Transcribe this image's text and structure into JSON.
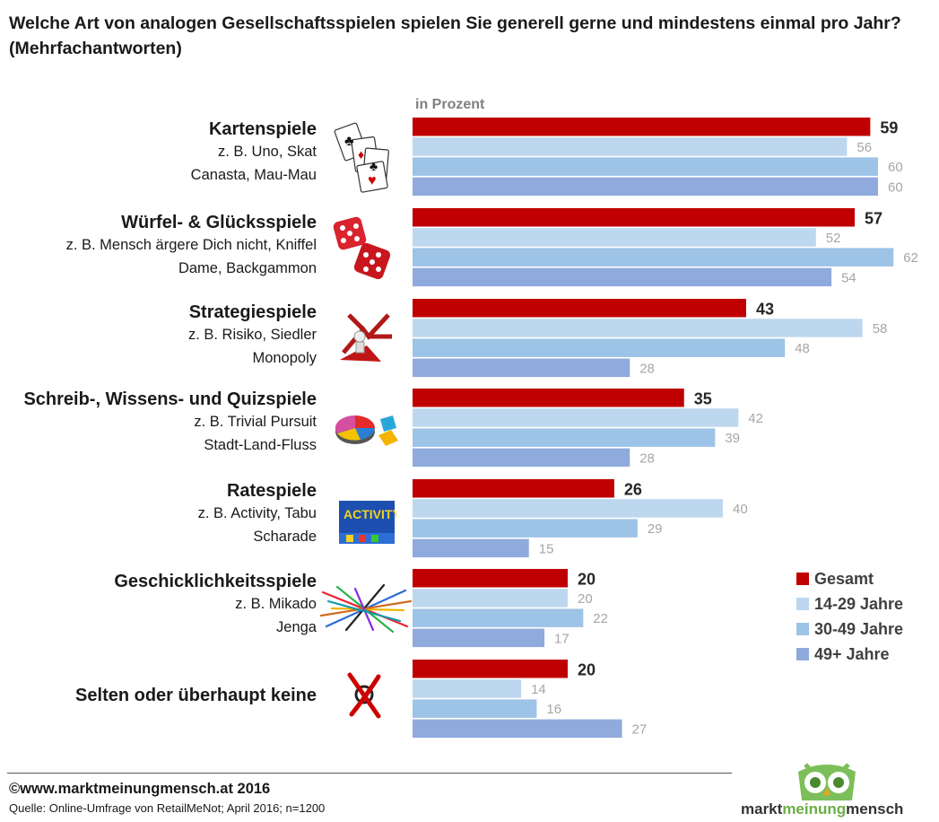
{
  "title": "Welche Art von analogen Gesellschaftsspielen spielen Sie generell gerne und mindestens einmal pro Jahr? (Mehrfachantworten)",
  "unit_label": "in Prozent",
  "colors": {
    "gesamt": "#c00000",
    "a14_29": "#bdd7ee",
    "a30_49": "#9dc3e6",
    "a49plus": "#8faadc"
  },
  "categories": [
    {
      "name": "Kartenspiele",
      "examples": [
        "z. B. Uno, Skat",
        "Canasta, Mau-Mau"
      ],
      "icon": "playing-cards-icon"
    },
    {
      "name": "Würfel- & Glücksspiele",
      "examples": [
        "z. B. Mensch ärgere Dich nicht, Kniffel",
        "Dame, Backgammon"
      ],
      "icon": "dice-icon"
    },
    {
      "name": "Strategiespiele",
      "examples": [
        "z. B. Risiko, Siedler",
        "Monopoly"
      ],
      "icon": "strategy-arrows-icon"
    },
    {
      "name": "Schreib-, Wissens- und Quizspiele",
      "examples": [
        "z. B. Trivial Pursuit",
        "Stadt-Land-Fluss"
      ],
      "icon": "quiz-pie-icon"
    },
    {
      "name": "Ratespiele",
      "examples": [
        "z. B. Activity, Tabu",
        "Scharade"
      ],
      "icon": "activity-box-icon"
    },
    {
      "name": "Geschicklichkeitsspiele",
      "examples": [
        "z. B. Mikado",
        "Jenga"
      ],
      "icon": "mikado-sticks-icon"
    },
    {
      "name": "Selten oder überhaupt keine",
      "examples": [],
      "icon": "crossed-out-icon"
    }
  ],
  "chart_data": {
    "type": "bar",
    "orientation": "horizontal",
    "title": "Welche Art von analogen Gesellschaftsspielen spielen Sie generell gerne und mindestens einmal pro Jahr? (Mehrfachantworten)",
    "unit": "in Prozent",
    "categories": [
      "Kartenspiele",
      "Würfel- & Glücksspiele",
      "Strategiespiele",
      "Schreib-, Wissens- und Quizspiele",
      "Ratespiele",
      "Geschicklichkeitsspiele",
      "Selten oder überhaupt keine"
    ],
    "series": [
      {
        "name": "Gesamt",
        "values": [
          59,
          57,
          43,
          35,
          26,
          20,
          20
        ]
      },
      {
        "name": "14-29 Jahre",
        "values": [
          56,
          52,
          58,
          42,
          40,
          20,
          14
        ]
      },
      {
        "name": "30-49 Jahre",
        "values": [
          60,
          62,
          48,
          39,
          29,
          22,
          16
        ]
      },
      {
        "name": "49+ Jahre",
        "values": [
          60,
          54,
          28,
          28,
          15,
          17,
          27
        ]
      }
    ],
    "xlim": [
      0,
      100
    ],
    "legend_position": "bottom-right",
    "grid": false
  },
  "legend": [
    "Gesamt",
    "14-29 Jahre",
    "30-49 Jahre",
    "49+ Jahre"
  ],
  "footer": {
    "copyright": "©www.marktmeinungmensch.at 2016",
    "source": "Quelle: Online-Umfrage von RetailMeNot; April 2016; n=1200"
  },
  "logo": {
    "part1": "markt",
    "part2": "meinung",
    "part3": "mensch",
    "icon": "owl-logo-icon"
  }
}
